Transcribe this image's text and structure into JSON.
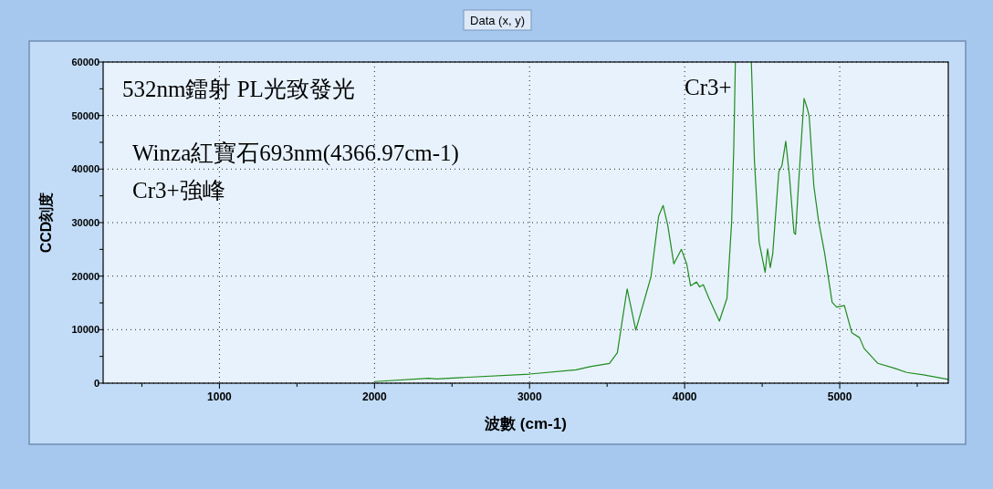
{
  "chart_data": {
    "type": "line",
    "title": "532nm鐳射 PL光致發光",
    "xlabel": "波數 (cm-1)",
    "ylabel": "CCD刻度",
    "annotations": [
      "Data (x, y)",
      "Winza紅寶石693nm(4366.97cm-1)\nCr3+強峰",
      "Cr3+"
    ],
    "xlim": [
      250,
      5700
    ],
    "ylim": [
      0,
      60000
    ],
    "xticks": [
      {
        "value": 500,
        "label": null
      },
      1000,
      {
        "value": 1500,
        "label": null
      },
      2000,
      {
        "value": 2500,
        "label": null
      },
      3000,
      {
        "value": 3500,
        "label": null
      },
      4000,
      {
        "value": 4500,
        "label": null
      },
      5000,
      {
        "value": 5500,
        "label": null
      }
    ],
    "yticks": [
      0,
      {
        "value": 5000,
        "label": null
      },
      10000,
      {
        "value": 15000,
        "label": null
      },
      20000,
      {
        "value": 25000,
        "label": null
      },
      30000,
      {
        "value": 35000,
        "label": null
      },
      40000,
      {
        "value": 45000,
        "label": null
      },
      50000,
      {
        "value": 55000,
        "label": null
      },
      60000
    ],
    "grid": true,
    "marker": "none",
    "line_style": "solid",
    "series": [
      {
        "color": "#1e8c1e",
        "x": [
          2000,
          2350,
          2400,
          3000,
          3300,
          3390,
          3515,
          3566,
          3596,
          3629,
          3685,
          3783,
          3832,
          3861,
          3891,
          3930,
          3979,
          4014,
          4038,
          4077,
          4096,
          4120,
          4156,
          4224,
          4273,
          4303,
          4317,
          4327,
          4380,
          4430,
          4450,
          4480,
          4519,
          4535,
          4552,
          4568,
          4607,
          4627,
          4652,
          4676,
          4705,
          4715,
          4735,
          4770,
          4790,
          4803,
          4833,
          4863,
          4902,
          4951,
          4980,
          5030,
          5078,
          5128,
          5157,
          5246,
          5353,
          5432,
          5550,
          5700
        ],
        "values": [
          300,
          900,
          800,
          1700,
          2500,
          3100,
          3700,
          5700,
          11400,
          17600,
          9900,
          19900,
          31200,
          33200,
          29500,
          22300,
          25000,
          22200,
          18200,
          18900,
          18000,
          18400,
          15900,
          11600,
          15900,
          30100,
          44300,
          60000,
          null,
          60000,
          41500,
          26400,
          20700,
          25100,
          21600,
          24200,
          39500,
          40600,
          45200,
          38600,
          28100,
          27800,
          37500,
          53200,
          51400,
          49900,
          36900,
          30400,
          24400,
          15100,
          14200,
          14500,
          9400,
          8500,
          6500,
          3700,
          2800,
          2000,
          1500,
          700
        ]
      }
    ]
  }
}
